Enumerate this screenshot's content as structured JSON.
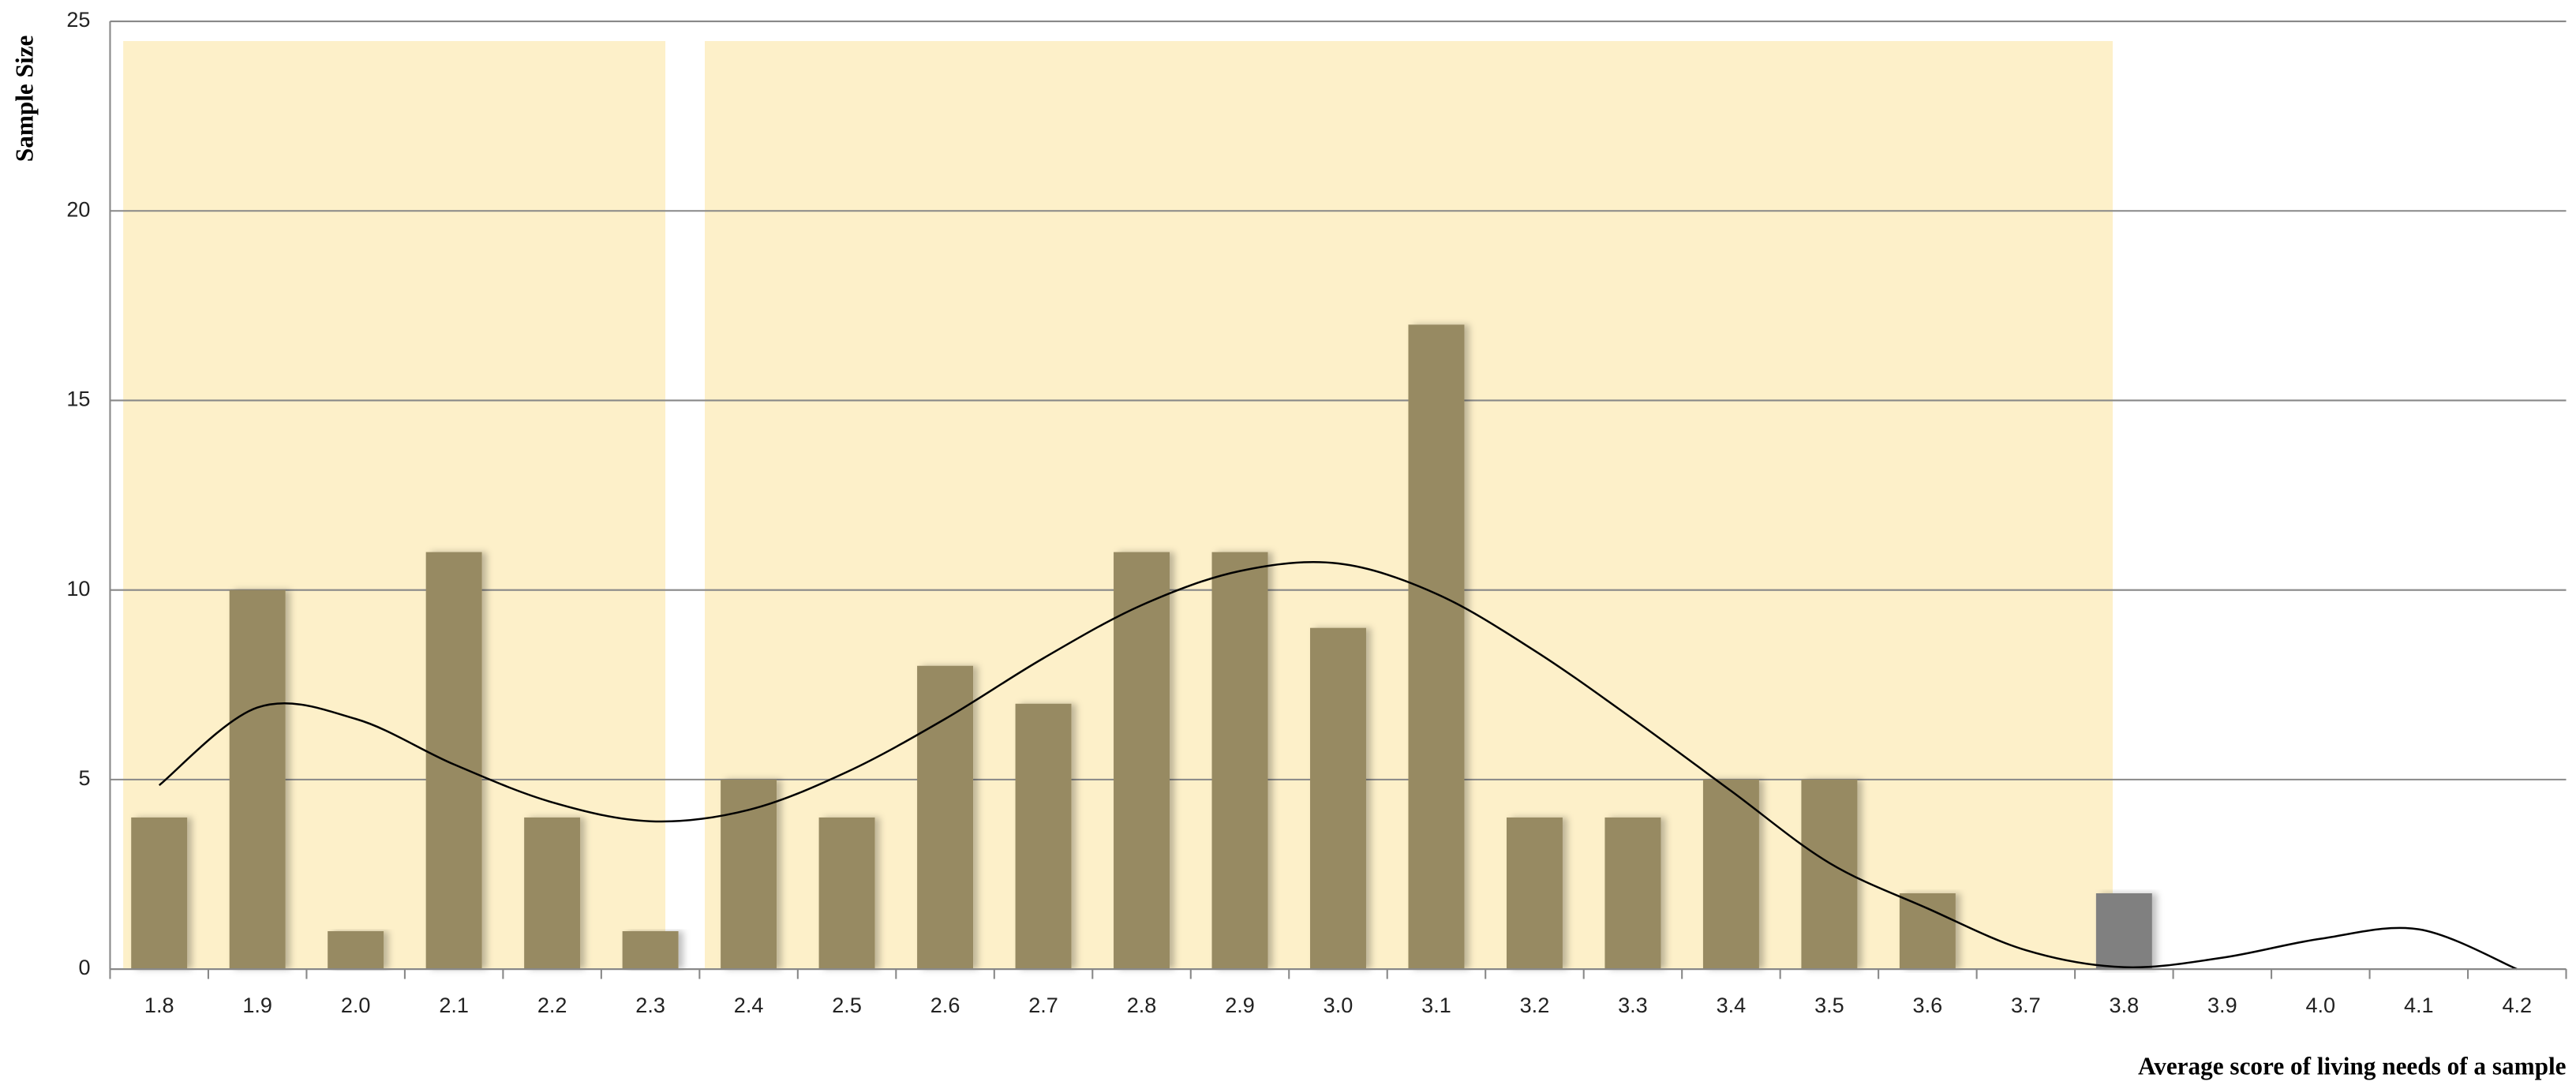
{
  "chart_data": {
    "type": "bar",
    "x_label": "Average score of living needs of a sample",
    "y_label": "Sample Size",
    "categories": [
      "1.8",
      "1.9",
      "2.0",
      "2.1",
      "2.2",
      "2.3",
      "2.4",
      "2.5",
      "2.6",
      "2.7",
      "2.8",
      "2.9",
      "3.0",
      "3.1",
      "3.2",
      "3.3",
      "3.4",
      "3.5",
      "3.6",
      "3.7",
      "3.8",
      "3.9",
      "4.0",
      "4.1",
      "4.2"
    ],
    "values": [
      4,
      10,
      1,
      11,
      4,
      1,
      5,
      4,
      8,
      7,
      11,
      11,
      9,
      17,
      4,
      4,
      5,
      5,
      2,
      0,
      2,
      0,
      0,
      0,
      0
    ],
    "colors": [
      "#978a62",
      "#978a62",
      "#978a62",
      "#978a62",
      "#978a62",
      "#978a62",
      "#978a62",
      "#978a62",
      "#978a62",
      "#978a62",
      "#978a62",
      "#978a62",
      "#978a62",
      "#978a62",
      "#978a62",
      "#978a62",
      "#978a62",
      "#978a62",
      "#978a62",
      "#978a62",
      "#808080",
      "#978a62",
      "#978a62",
      "#978a62",
      "#978a62"
    ],
    "trend": {
      "type": "line",
      "color": "#000000",
      "values": [
        4.85,
        6.9,
        6.6,
        5.4,
        4.4,
        3.9,
        4.2,
        5.2,
        6.6,
        8.2,
        9.6,
        10.5,
        10.7,
        9.9,
        8.4,
        6.6,
        4.7,
        2.8,
        1.6,
        0.5,
        0.05,
        0.3,
        0.8,
        1.05,
        0
      ]
    },
    "ylim": [
      0,
      25
    ],
    "yticks": [
      0,
      5,
      10,
      15,
      20,
      25
    ],
    "grid": true
  }
}
